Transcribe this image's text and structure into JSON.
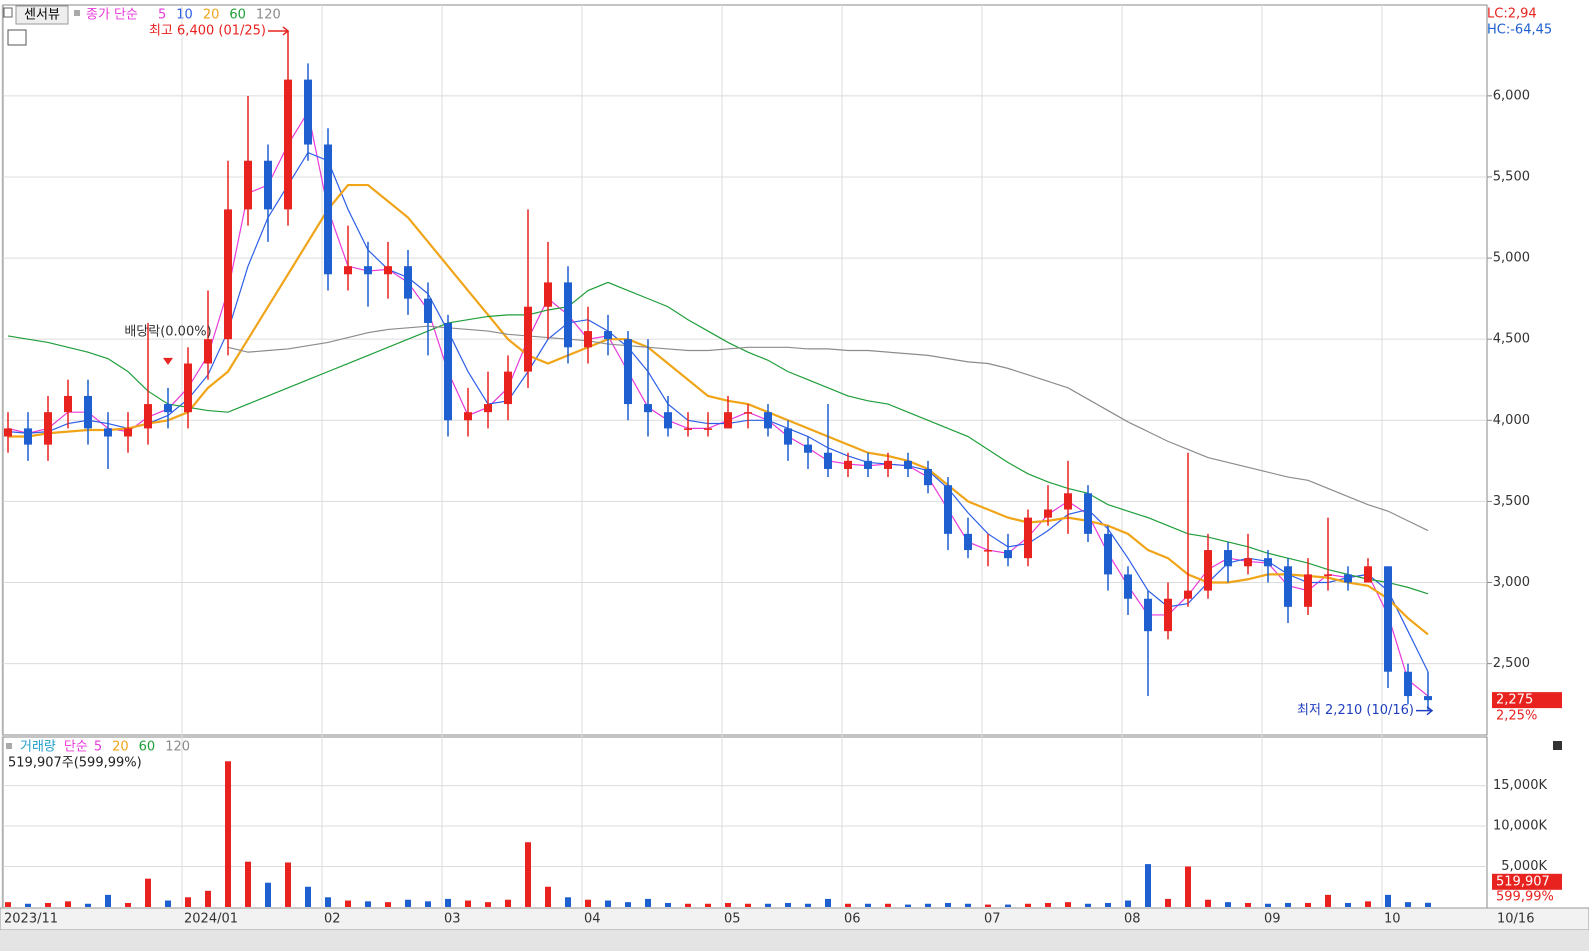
{
  "header": {
    "tab": "센서뷰",
    "ma_label": "종가 단순",
    "lc": "LC:2,94",
    "hc": "HC:-64,45"
  },
  "chart_data": [
    {
      "type": "candlestick",
      "categories": [
        "2023/11",
        null,
        null,
        null,
        null,
        null,
        null,
        null,
        null,
        "2024/01",
        null,
        null,
        null,
        null,
        null,
        null,
        "02",
        null,
        null,
        null,
        null,
        null,
        "03",
        null,
        null,
        null,
        null,
        null,
        null,
        "04",
        null,
        null,
        null,
        null,
        null,
        null,
        "05",
        null,
        null,
        null,
        null,
        null,
        "06",
        null,
        null,
        null,
        null,
        null,
        null,
        "07",
        null,
        null,
        null,
        null,
        null,
        null,
        "08",
        null,
        null,
        null,
        null,
        null,
        null,
        "09",
        null,
        null,
        null,
        null,
        null,
        "10",
        null,
        null
      ],
      "open": [
        3900,
        3950,
        3850,
        4050,
        4150,
        3950,
        3900,
        3950,
        4100,
        4050,
        4350,
        4500,
        5300,
        5600,
        5300,
        6100,
        5700,
        4900,
        4950,
        4900,
        4950,
        4750,
        4600,
        4000,
        4050,
        4100,
        4300,
        4700,
        4850,
        4450,
        4550,
        4500,
        4100,
        4050,
        3950,
        3950,
        3950,
        4050,
        4050,
        3950,
        3850,
        3800,
        3700,
        3750,
        3700,
        3750,
        3700,
        3600,
        3300,
        3200,
        3200,
        3150,
        3400,
        3450,
        3550,
        3300,
        3050,
        2900,
        2700,
        2900,
        2950,
        3200,
        3100,
        3150,
        3100,
        2850,
        3050,
        3050,
        3000,
        3100,
        2450,
        2300
      ],
      "high": [
        4050,
        4050,
        4150,
        4250,
        4250,
        4050,
        4050,
        4600,
        4200,
        4450,
        4800,
        5600,
        6000,
        5700,
        6400,
        6200,
        5800,
        5200,
        5100,
        5100,
        5050,
        4850,
        4650,
        4200,
        4300,
        4400,
        5300,
        5100,
        4950,
        4700,
        4650,
        4550,
        4500,
        4150,
        4050,
        4050,
        4150,
        4100,
        4100,
        4000,
        3900,
        4100,
        3800,
        3800,
        3800,
        3800,
        3750,
        3650,
        3400,
        3300,
        3300,
        3450,
        3600,
        3750,
        3600,
        3350,
        3100,
        2950,
        3000,
        3800,
        3300,
        3250,
        3300,
        3200,
        3150,
        3150,
        3400,
        3100,
        3150,
        3100,
        2500,
        2450
      ],
      "low": [
        3800,
        3750,
        3750,
        3950,
        3850,
        3700,
        3800,
        3850,
        3950,
        3950,
        4250,
        4400,
        5200,
        5100,
        5200,
        5600,
        4800,
        4800,
        4700,
        4750,
        4650,
        4400,
        3900,
        3900,
        3950,
        4000,
        4200,
        4500,
        4350,
        4350,
        4400,
        4000,
        3900,
        3900,
        3900,
        3900,
        3950,
        3950,
        3900,
        3750,
        3700,
        3650,
        3650,
        3650,
        3650,
        3650,
        3550,
        3200,
        3150,
        3100,
        3100,
        3100,
        3350,
        3300,
        3250,
        2950,
        2800,
        2300,
        2650,
        2850,
        2900,
        3000,
        3050,
        3000,
        2750,
        2800,
        2950,
        2950,
        3000,
        2350,
        2250,
        2210
      ],
      "close": [
        3950,
        3850,
        4050,
        4150,
        3950,
        3900,
        3950,
        4100,
        4050,
        4350,
        4500,
        5300,
        5600,
        5300,
        6100,
        5700,
        4900,
        4950,
        4900,
        4950,
        4750,
        4600,
        4000,
        4050,
        4100,
        4300,
        4700,
        4850,
        4450,
        4550,
        4500,
        4100,
        4050,
        3950,
        3950,
        3950,
        4050,
        4050,
        3950,
        3850,
        3800,
        3700,
        3750,
        3700,
        3750,
        3700,
        3600,
        3300,
        3200,
        3200,
        3150,
        3400,
        3450,
        3550,
        3300,
        3050,
        2900,
        2700,
        2900,
        2950,
        3200,
        3100,
        3150,
        3100,
        2850,
        3050,
        3050,
        3000,
        3100,
        2450,
        2300,
        2275
      ],
      "up_color": "#e8231f",
      "down_color": "#1f5fcf",
      "series": [
        {
          "name": "5",
          "color": "#e83ad9",
          "values": [
            3950,
            3920,
            3950,
            4050,
            4050,
            3950,
            3930,
            4020,
            4070,
            4200,
            4400,
            4800,
            5400,
            5450,
            5700,
            5900,
            5300,
            4950,
            4920,
            4930,
            4850,
            4680,
            4300,
            4030,
            4080,
            4200,
            4500,
            4750,
            4650,
            4500,
            4520,
            4300,
            4080,
            4000,
            3950,
            3950,
            4000,
            4050,
            4000,
            3900,
            3830,
            3750,
            3730,
            3720,
            3730,
            3720,
            3650,
            3450,
            3250,
            3200,
            3180,
            3280,
            3420,
            3500,
            3420,
            3180,
            2980,
            2800,
            2800,
            2920,
            3080,
            3150,
            3130,
            3120,
            2980,
            2950,
            3050,
            3030,
            3050,
            2800,
            2400,
            2300
          ]
        },
        {
          "name": "10",
          "color": "#2c5ee8",
          "values": [
            3930,
            3920,
            3930,
            3980,
            4000,
            3980,
            3950,
            3980,
            4030,
            4130,
            4280,
            4550,
            4950,
            5250,
            5450,
            5650,
            5600,
            5300,
            5050,
            4930,
            4880,
            4780,
            4550,
            4300,
            4100,
            4120,
            4300,
            4500,
            4600,
            4620,
            4550,
            4450,
            4300,
            4100,
            4000,
            3980,
            3980,
            4000,
            4000,
            3950,
            3900,
            3830,
            3780,
            3740,
            3730,
            3720,
            3690,
            3580,
            3430,
            3300,
            3220,
            3240,
            3320,
            3420,
            3450,
            3330,
            3150,
            2950,
            2850,
            2870,
            3000,
            3120,
            3150,
            3130,
            3050,
            3000,
            3000,
            3030,
            3050,
            2950,
            2700,
            2450
          ]
        },
        {
          "name": "20",
          "color": "#f0a418",
          "values": [
            3900,
            3900,
            3920,
            3930,
            3940,
            3940,
            3950,
            3980,
            4000,
            4050,
            4200,
            4300,
            4500,
            4700,
            4900,
            5100,
            5300,
            5450,
            5450,
            5350,
            5250,
            5100,
            4950,
            4800,
            4650,
            4500,
            4400,
            4350,
            4400,
            4450,
            4500,
            4500,
            4450,
            4350,
            4250,
            4150,
            4120,
            4100,
            4050,
            4000,
            3950,
            3900,
            3850,
            3800,
            3780,
            3750,
            3700,
            3600,
            3500,
            3450,
            3400,
            3370,
            3380,
            3400,
            3380,
            3350,
            3300,
            3200,
            3150,
            3050,
            3000,
            3000,
            3020,
            3050,
            3050,
            3040,
            3030,
            3000,
            2980,
            2900,
            2780,
            2680
          ]
        },
        {
          "name": "60",
          "color": "#1f9e3a",
          "values": [
            4520,
            4500,
            4480,
            4450,
            4420,
            4380,
            4300,
            4180,
            4100,
            4080,
            4060,
            4050,
            4100,
            4150,
            4200,
            4250,
            4300,
            4350,
            4400,
            4450,
            4500,
            4550,
            4600,
            4620,
            4640,
            4650,
            4650,
            4680,
            4700,
            4800,
            4850,
            4800,
            4750,
            4700,
            4620,
            4550,
            4480,
            4420,
            4370,
            4300,
            4250,
            4200,
            4150,
            4120,
            4100,
            4050,
            4000,
            3950,
            3900,
            3820,
            3740,
            3670,
            3620,
            3580,
            3550,
            3480,
            3440,
            3400,
            3350,
            3300,
            3280,
            3250,
            3220,
            3180,
            3150,
            3120,
            3080,
            3050,
            3020,
            3000,
            2970,
            2930
          ]
        },
        {
          "name": "120",
          "color": "#8c8c8c",
          "values": [
            null,
            null,
            null,
            null,
            null,
            null,
            null,
            null,
            null,
            null,
            null,
            4450,
            4420,
            4430,
            4440,
            4460,
            4480,
            4510,
            4540,
            4560,
            4570,
            4580,
            4570,
            4560,
            4550,
            4530,
            4520,
            4510,
            4500,
            4490,
            4470,
            4460,
            4450,
            4440,
            4430,
            4430,
            4440,
            4450,
            4450,
            4450,
            4440,
            4440,
            4430,
            4430,
            4420,
            4410,
            4400,
            4380,
            4360,
            4350,
            4320,
            4280,
            4240,
            4200,
            4130,
            4060,
            3990,
            3930,
            3870,
            3820,
            3770,
            3740,
            3710,
            3680,
            3650,
            3630,
            3580,
            3530,
            3480,
            3440,
            3380,
            3320
          ]
        }
      ],
      "ylim": [
        2060,
        6560
      ],
      "yticks": [
        {
          "value": 2500,
          "label": "2,500"
        },
        {
          "value": 3000,
          "label": "3,000"
        },
        {
          "value": 3500,
          "label": "3,500"
        },
        {
          "value": 4000,
          "label": "4,000"
        },
        {
          "value": 4500,
          "label": "4,500"
        },
        {
          "value": 5000,
          "label": "5,000"
        },
        {
          "value": 5500,
          "label": "5,500"
        },
        {
          "value": 6000,
          "label": "6,000"
        }
      ],
      "grid": true,
      "high_label": "최고 6,400 (01/25)",
      "low_label": "최저 2,210 (10/16)",
      "dividend_label": "배당락(0.00%)",
      "last_close_label": "2,275",
      "change_label": "2,25%",
      "last_date": "10/16"
    },
    {
      "type": "bar",
      "title": "거래량",
      "ma_label": "단순",
      "legend": [
        {
          "name": "5",
          "color": "#e83ad9"
        },
        {
          "name": "20",
          "color": "#f0a418"
        },
        {
          "name": "60",
          "color": "#1f9e3a"
        },
        {
          "name": "120",
          "color": "#8c8c8c"
        }
      ],
      "info": "519,907주(599,99%)",
      "values": [
        600,
        400,
        500,
        700,
        400,
        1500,
        500,
        3500,
        800,
        1200,
        2000,
        18000,
        5600,
        3000,
        5500,
        2500,
        1200,
        800,
        700,
        600,
        900,
        700,
        1000,
        800,
        600,
        900,
        8000,
        2500,
        1200,
        900,
        800,
        600,
        1000,
        500,
        400,
        400,
        500,
        400,
        400,
        500,
        400,
        1000,
        400,
        400,
        400,
        300,
        400,
        500,
        400,
        300,
        300,
        400,
        500,
        600,
        400,
        500,
        800,
        5300,
        1000,
        5000,
        900,
        600,
        500,
        400,
        500,
        500,
        1500,
        500,
        700,
        1500,
        600,
        519.907
      ],
      "ylim": [
        0,
        21000
      ],
      "yticks": [
        {
          "value": 5000,
          "label": "5,000K"
        },
        {
          "value": 10000,
          "label": "10,000K"
        },
        {
          "value": 15000,
          "label": "15,000K"
        }
      ],
      "grid": true,
      "last_volume_label": "519,907",
      "ratio_label": "599,99%"
    }
  ]
}
